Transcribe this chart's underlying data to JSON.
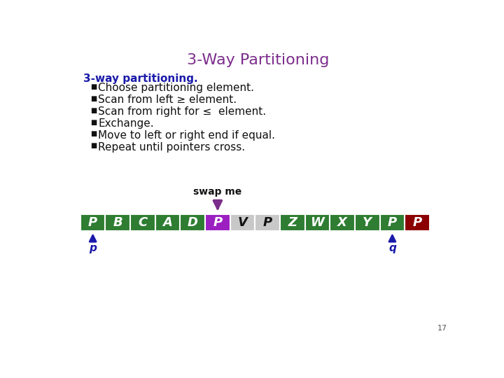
{
  "title": "3-Way Partitioning",
  "title_color": "#7B2D8B",
  "title_fontsize": 16,
  "subtitle": "3-way partitioning.",
  "subtitle_color": "#1a1aaa",
  "subtitle_fontsize": 11,
  "bullets": [
    "Choose partitioning element.",
    "Scan from left ≥ element.",
    "Scan from right for ≤  element.",
    "Exchange.",
    "Move to left or right end if equal.",
    "Repeat until pointers cross."
  ],
  "bullet_fontsize": 11,
  "bullet_color": "#111111",
  "array_labels": [
    "P",
    "B",
    "C",
    "A",
    "D",
    "P",
    "V",
    "P",
    "Z",
    "W",
    "X",
    "Y",
    "P",
    "P"
  ],
  "array_colors": [
    "#2e7d32",
    "#2e7d32",
    "#2e7d32",
    "#2e7d32",
    "#2e7d32",
    "#9b1fc1",
    "#c8c8c8",
    "#c8c8c8",
    "#2e7d32",
    "#2e7d32",
    "#2e7d32",
    "#2e7d32",
    "#2e7d32",
    "#8b0000"
  ],
  "array_text_colors": [
    "#ffffff",
    "#ffffff",
    "#ffffff",
    "#ffffff",
    "#ffffff",
    "#ffffff",
    "#111111",
    "#111111",
    "#ffffff",
    "#ffffff",
    "#ffffff",
    "#ffffff",
    "#ffffff",
    "#ffffff"
  ],
  "swap_me_label": "swap me",
  "swap_me_color": "#111111",
  "swap_arrow_color": "#7B2D8B",
  "swap_arrow_index": 5,
  "p_pointer_index": 0,
  "q_pointer_index": 12,
  "pointer_color": "#1a1aaa",
  "page_number": "17",
  "background_color": "#ffffff"
}
